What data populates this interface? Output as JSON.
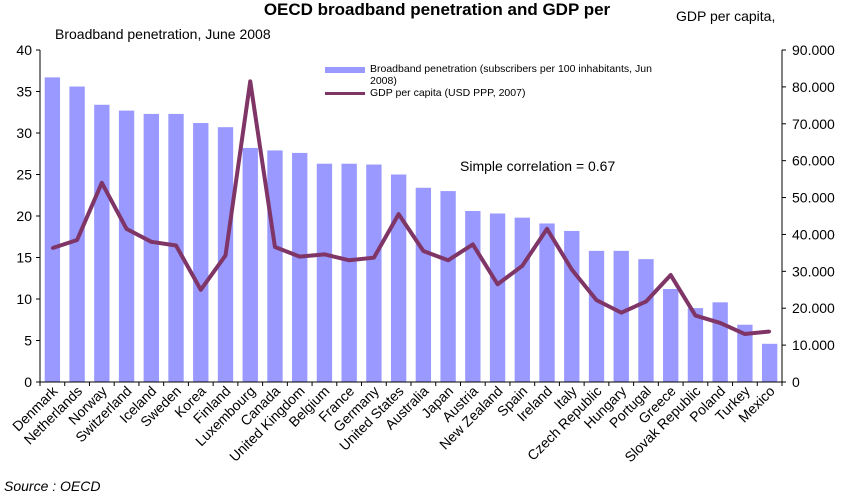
{
  "chart_data": {
    "type": "bar+line",
    "title": "OECD broadband penetration and GDP per",
    "left_axis_title": "Broadband penetration, June 2008",
    "right_axis_title": "GDP per capita,",
    "annotation": "Simple correlation = 0.67",
    "source": "Source : OECD",
    "categories": [
      "Denmark",
      "Netherlands",
      "Norway",
      "Switzerland",
      "Iceland",
      "Sweden",
      "Korea",
      "Finland",
      "Luxembourg",
      "Canada",
      "United Kingdom",
      "Belgium",
      "France",
      "Germany",
      "United States",
      "Australia",
      "Japan",
      "Austria",
      "New Zealand",
      "Spain",
      "Ireland",
      "Italy",
      "Czech Republic",
      "Hungary",
      "Portugal",
      "Greece",
      "Slovak Republic",
      "Poland",
      "Turkey",
      "Mexico"
    ],
    "y_left": {
      "ticks": [
        "0",
        "5",
        "10",
        "15",
        "20",
        "25",
        "30",
        "35",
        "40"
      ],
      "ylim": [
        0,
        40
      ]
    },
    "y_right": {
      "ticks": [
        "0",
        "10.000",
        "20.000",
        "30.000",
        "40.000",
        "50.000",
        "60.000",
        "70.000",
        "80.000",
        "90.000"
      ],
      "ylim": [
        0,
        90000
      ]
    },
    "series": [
      {
        "name": "Broadband penetration (subscribers per 100 inhabitants, Jun 2008)",
        "type": "bar",
        "axis": "left",
        "color": "#9999ff",
        "values": [
          36.7,
          35.6,
          33.4,
          32.7,
          32.3,
          32.3,
          31.2,
          30.7,
          28.2,
          27.9,
          27.6,
          26.3,
          26.3,
          26.2,
          25.0,
          23.4,
          23.0,
          20.6,
          20.3,
          19.8,
          19.1,
          18.2,
          15.8,
          15.8,
          14.8,
          11.2,
          8.9,
          9.6,
          6.9,
          4.6
        ]
      },
      {
        "name": "GDP per capita (USD PPP, 2007)",
        "type": "line",
        "axis": "right",
        "color": "#7f3566",
        "values": [
          36300,
          38500,
          54000,
          41500,
          38000,
          37000,
          25000,
          34300,
          81500,
          36600,
          34000,
          34600,
          33000,
          33700,
          45500,
          35500,
          33000,
          37300,
          26500,
          31500,
          41500,
          30500,
          22200,
          18800,
          21800,
          29000,
          18000,
          16000,
          13000,
          13700
        ]
      }
    ]
  }
}
